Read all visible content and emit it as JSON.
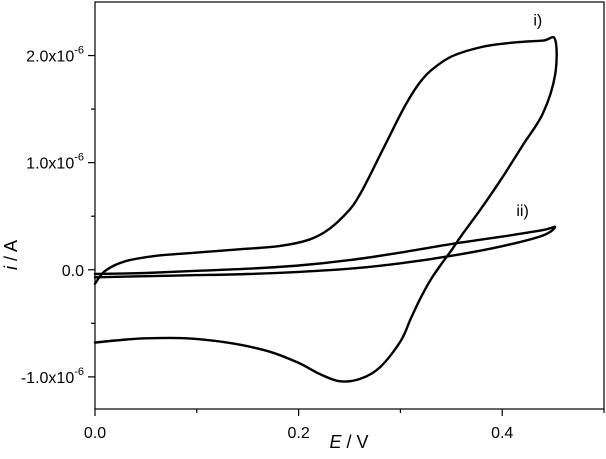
{
  "chart_data": {
    "type": "line",
    "xlabel_italic": "E",
    "xlabel_rest": " / V",
    "ylabel_italic": "i",
    "ylabel_rest": " / A",
    "xlim": [
      0.0,
      0.5
    ],
    "ylim": [
      -1.3e-06,
      2.5e-06
    ],
    "x_major_ticks": [
      {
        "value": 0.0,
        "label": "0.0"
      },
      {
        "value": 0.2,
        "label": "0.2"
      },
      {
        "value": 0.4,
        "label": "0.4"
      }
    ],
    "x_minor_ticks": [
      0.1,
      0.3,
      0.5
    ],
    "y_major_ticks": [
      {
        "value": -1e-06,
        "mantissa": "-1.0x10",
        "exponent": "-6"
      },
      {
        "value": 0.0,
        "mantissa": "0.0",
        "exponent": ""
      },
      {
        "value": 1e-06,
        "mantissa": "1.0x10",
        "exponent": "-6"
      },
      {
        "value": 2e-06,
        "mantissa": "2.0x10",
        "exponent": "-6"
      }
    ],
    "y_minor_ticks": [
      -5e-07,
      5e-07,
      1.5e-06
    ],
    "grid": false,
    "series": [
      {
        "label": "i)",
        "label_at": [
          0.435,
          2.28e-06
        ],
        "x": [
          0.0,
          0.01,
          0.03,
          0.06,
          0.1,
          0.14,
          0.18,
          0.21,
          0.23,
          0.25,
          0.26,
          0.27,
          0.28,
          0.29,
          0.3,
          0.31,
          0.32,
          0.33,
          0.35,
          0.38,
          0.41,
          0.44,
          0.452,
          0.452,
          0.44,
          0.42,
          0.4,
          0.38,
          0.36,
          0.35,
          0.34,
          0.33,
          0.32,
          0.31,
          0.3,
          0.28,
          0.26,
          0.24,
          0.22,
          0.2,
          0.17,
          0.13,
          0.09,
          0.05,
          0.02,
          0.0
        ],
        "y": [
          -1.3e-07,
          -1e-08,
          8e-08,
          1.3e-07,
          1.6e-07,
          1.9e-07,
          2.2e-07,
          2.8e-07,
          3.8e-07,
          5.6e-07,
          7e-07,
          8.8e-07,
          1.07e-06,
          1.26e-06,
          1.45e-06,
          1.62e-06,
          1.76e-06,
          1.86e-06,
          1.99e-06,
          2.08e-06,
          2.12e-06,
          2.14e-06,
          2.15e-06,
          1.82e-06,
          1.46e-06,
          1.16e-06,
          8.6e-07,
          5.8e-07,
          3.2e-07,
          1.8e-07,
          5e-08,
          -9e-08,
          -2.6e-07,
          -4.6e-07,
          -6.7e-07,
          -9.1e-07,
          -1.02e-06,
          -1.04e-06,
          -9.7e-07,
          -8.7e-07,
          -7.6e-07,
          -6.8e-07,
          -6.4e-07,
          -6.4e-07,
          -6.6e-07,
          -6.8e-07
        ]
      },
      {
        "label": "ii)",
        "label_at": [
          0.42,
          5e-07
        ],
        "x": [
          0.0,
          0.05,
          0.1,
          0.15,
          0.2,
          0.25,
          0.3,
          0.35,
          0.4,
          0.44,
          0.452,
          0.44,
          0.4,
          0.35,
          0.3,
          0.25,
          0.2,
          0.15,
          0.1,
          0.05,
          0.0
        ],
        "y": [
          -7e-08,
          -6e-08,
          -5e-08,
          -4e-08,
          -2e-08,
          1e-08,
          6e-08,
          1.3e-07,
          2.2e-07,
          3.2e-07,
          4e-07,
          3.7e-07,
          3.1e-07,
          2.4e-07,
          1.6e-07,
          9e-08,
          4e-08,
          1e-08,
          -1e-08,
          -3e-08,
          -4e-08
        ]
      }
    ]
  }
}
